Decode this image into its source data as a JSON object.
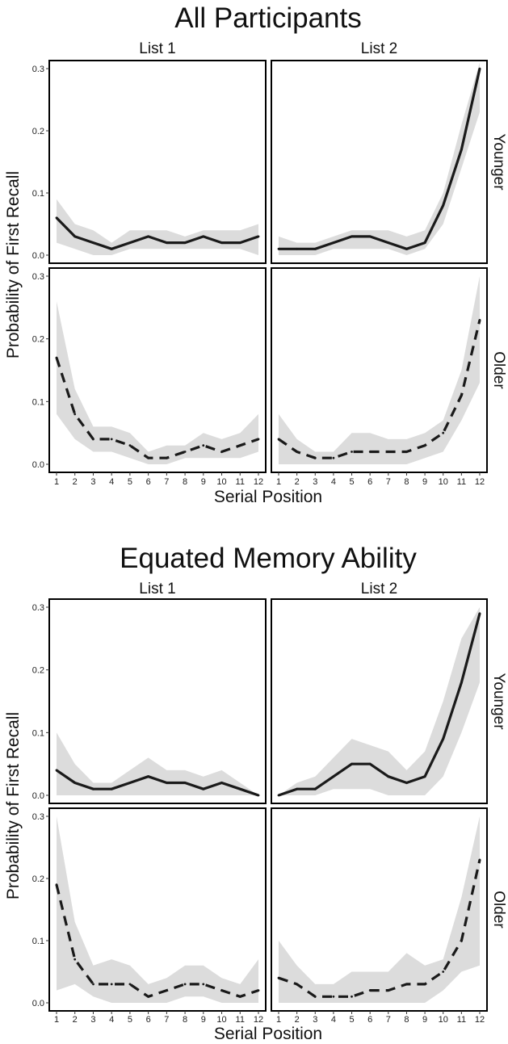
{
  "chart_data": [
    {
      "type": "line",
      "title": "All Participants",
      "xlabel": "Serial Position",
      "ylabel": "Probability of First Recall",
      "x": [
        1,
        2,
        3,
        4,
        5,
        6,
        7,
        8,
        9,
        10,
        11,
        12
      ],
      "x_ticks": [
        "1",
        "2",
        "3",
        "4",
        "5",
        "6",
        "7",
        "8",
        "9",
        "10",
        "11",
        "12"
      ],
      "y_ticks": [
        "0.0",
        "0.1",
        "0.2",
        "0.3"
      ],
      "ylim": [
        0,
        0.3
      ],
      "column_labels": [
        "List 1",
        "List 2"
      ],
      "row_labels": [
        "Younger",
        "Older"
      ],
      "grid": false,
      "panels": [
        {
          "row": "Younger",
          "col": "List 1",
          "line": "solid",
          "values": [
            0.06,
            0.03,
            0.02,
            0.01,
            0.02,
            0.03,
            0.02,
            0.02,
            0.03,
            0.02,
            0.02,
            0.03
          ],
          "ci_low": [
            0.02,
            0.01,
            0.0,
            0.0,
            0.01,
            0.01,
            0.01,
            0.01,
            0.01,
            0.01,
            0.01,
            0.0
          ],
          "ci_high": [
            0.09,
            0.05,
            0.04,
            0.02,
            0.04,
            0.04,
            0.04,
            0.03,
            0.04,
            0.04,
            0.04,
            0.05
          ]
        },
        {
          "row": "Younger",
          "col": "List 2",
          "line": "solid",
          "values": [
            0.01,
            0.01,
            0.01,
            0.02,
            0.03,
            0.03,
            0.02,
            0.01,
            0.02,
            0.08,
            0.17,
            0.3
          ],
          "ci_low": [
            0.0,
            0.0,
            0.0,
            0.01,
            0.01,
            0.01,
            0.01,
            0.0,
            0.01,
            0.05,
            0.14,
            0.23
          ],
          "ci_high": [
            0.03,
            0.02,
            0.02,
            0.03,
            0.04,
            0.04,
            0.04,
            0.03,
            0.04,
            0.1,
            0.21,
            0.31
          ]
        },
        {
          "row": "Older",
          "col": "List 1",
          "line": "dashed",
          "values": [
            0.17,
            0.08,
            0.04,
            0.04,
            0.03,
            0.01,
            0.01,
            0.02,
            0.03,
            0.02,
            0.03,
            0.04
          ],
          "ci_low": [
            0.08,
            0.04,
            0.02,
            0.02,
            0.01,
            0.0,
            0.0,
            0.01,
            0.01,
            0.01,
            0.01,
            0.02
          ],
          "ci_high": [
            0.26,
            0.12,
            0.06,
            0.06,
            0.05,
            0.02,
            0.03,
            0.03,
            0.05,
            0.04,
            0.05,
            0.08
          ]
        },
        {
          "row": "Older",
          "col": "List 2",
          "line": "dashed",
          "values": [
            0.04,
            0.02,
            0.01,
            0.01,
            0.02,
            0.02,
            0.02,
            0.02,
            0.03,
            0.05,
            0.11,
            0.23
          ],
          "ci_low": [
            0.0,
            0.0,
            0.0,
            0.0,
            0.0,
            0.0,
            0.0,
            0.0,
            0.01,
            0.02,
            0.07,
            0.13
          ],
          "ci_high": [
            0.08,
            0.04,
            0.02,
            0.02,
            0.05,
            0.05,
            0.04,
            0.04,
            0.05,
            0.07,
            0.15,
            0.3
          ]
        }
      ]
    },
    {
      "type": "line",
      "title": "Equated Memory Ability",
      "xlabel": "Serial Position",
      "ylabel": "Probability of First Recall",
      "x": [
        1,
        2,
        3,
        4,
        5,
        6,
        7,
        8,
        9,
        10,
        11,
        12
      ],
      "x_ticks": [
        "1",
        "2",
        "3",
        "4",
        "5",
        "6",
        "7",
        "8",
        "9",
        "10",
        "11",
        "12"
      ],
      "y_ticks": [
        "0.0",
        "0.1",
        "0.2",
        "0.3"
      ],
      "ylim": [
        0,
        0.3
      ],
      "column_labels": [
        "List 1",
        "List 2"
      ],
      "row_labels": [
        "Younger",
        "Older"
      ],
      "grid": false,
      "panels": [
        {
          "row": "Younger",
          "col": "List 1",
          "line": "solid",
          "values": [
            0.04,
            0.02,
            0.01,
            0.01,
            0.02,
            0.03,
            0.02,
            0.02,
            0.01,
            0.02,
            0.01,
            0.0
          ],
          "ci_low": [
            0.0,
            0.0,
            0.0,
            0.0,
            0.0,
            0.0,
            0.0,
            0.0,
            0.0,
            0.0,
            0.0,
            0.0
          ],
          "ci_high": [
            0.1,
            0.05,
            0.02,
            0.02,
            0.04,
            0.06,
            0.04,
            0.04,
            0.03,
            0.04,
            0.02,
            0.0
          ]
        },
        {
          "row": "Younger",
          "col": "List 2",
          "line": "solid",
          "values": [
            0.0,
            0.01,
            0.01,
            0.03,
            0.05,
            0.05,
            0.03,
            0.02,
            0.03,
            0.09,
            0.18,
            0.29
          ],
          "ci_low": [
            0.0,
            0.0,
            0.0,
            0.01,
            0.01,
            0.01,
            0.0,
            0.0,
            0.0,
            0.03,
            0.1,
            0.18
          ],
          "ci_high": [
            0.0,
            0.02,
            0.03,
            0.06,
            0.09,
            0.08,
            0.07,
            0.04,
            0.07,
            0.15,
            0.25,
            0.3
          ]
        },
        {
          "row": "Older",
          "col": "List 1",
          "line": "dashed",
          "values": [
            0.19,
            0.07,
            0.03,
            0.03,
            0.03,
            0.01,
            0.02,
            0.03,
            0.03,
            0.02,
            0.01,
            0.02
          ],
          "ci_low": [
            0.02,
            0.03,
            0.01,
            0.0,
            0.0,
            0.0,
            0.0,
            0.01,
            0.01,
            0.0,
            0.0,
            0.0
          ],
          "ci_high": [
            0.3,
            0.13,
            0.06,
            0.07,
            0.06,
            0.03,
            0.04,
            0.06,
            0.06,
            0.04,
            0.03,
            0.07
          ]
        },
        {
          "row": "Older",
          "col": "List 2",
          "line": "dashed",
          "values": [
            0.04,
            0.03,
            0.01,
            0.01,
            0.01,
            0.02,
            0.02,
            0.03,
            0.03,
            0.05,
            0.1,
            0.23
          ],
          "ci_low": [
            0.0,
            0.0,
            0.0,
            0.0,
            0.0,
            0.0,
            0.0,
            0.0,
            0.0,
            0.02,
            0.05,
            0.06
          ],
          "ci_high": [
            0.1,
            0.06,
            0.03,
            0.03,
            0.05,
            0.05,
            0.05,
            0.08,
            0.06,
            0.07,
            0.17,
            0.3
          ]
        }
      ]
    }
  ],
  "colors": {
    "line": "#1a1a1a",
    "ribbon": "#dcdcdc",
    "panel_border": "#000000",
    "background": "#ffffff"
  }
}
